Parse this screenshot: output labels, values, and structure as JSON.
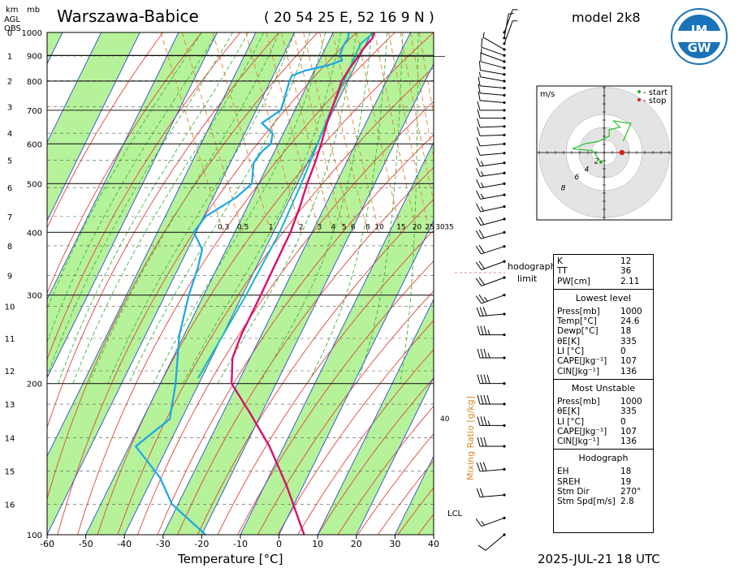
{
  "header": {
    "station": "Warszawa-Babice",
    "coords": "( 20 54 25 E, 52 16 9 N )",
    "model": "model 2k8",
    "datetime": "2025-JUL-21   18 UTC",
    "logo_text": "IMGW"
  },
  "left_labels": {
    "km": "km",
    "mb": "mb",
    "agl": "AGL",
    "obs": "OBS"
  },
  "chart_data": {
    "type": "skew-t",
    "xlabel": "Temperature [°C]",
    "x_range": [
      -60,
      40
    ],
    "x_ticks": [
      "-60",
      "-50",
      "-40",
      "-30",
      "-20",
      "-10",
      "0",
      "10",
      "20",
      "30",
      "40"
    ],
    "p_range": [
      1000,
      100
    ],
    "p_ticks": [
      {
        "p": 100,
        "label": "100"
      },
      {
        "p": 200,
        "label": "200"
      },
      {
        "p": 300,
        "label": "300"
      },
      {
        "p": 400,
        "label": "400"
      },
      {
        "p": 500,
        "label": "500"
      },
      {
        "p": 600,
        "label": "600"
      },
      {
        "p": 700,
        "label": "700"
      },
      {
        "p": 800,
        "label": "800"
      },
      {
        "p": 900,
        "label": "900"
      },
      {
        "p": 1000,
        "label": "1000"
      }
    ],
    "km_ticks": [
      {
        "p": 1000,
        "label": "0"
      },
      {
        "p": 898,
        "label": "1"
      },
      {
        "p": 802,
        "label": "2"
      },
      {
        "p": 712,
        "label": "3"
      },
      {
        "p": 630,
        "label": "4"
      },
      {
        "p": 557,
        "label": "5"
      },
      {
        "p": 491,
        "label": "6"
      },
      {
        "p": 430,
        "label": "7"
      },
      {
        "p": 376,
        "label": "8"
      },
      {
        "p": 328,
        "label": "9"
      },
      {
        "p": 285,
        "label": "10"
      },
      {
        "p": 246,
        "label": "11"
      },
      {
        "p": 212,
        "label": "12"
      },
      {
        "p": 182,
        "label": "13"
      },
      {
        "p": 156,
        "label": "14"
      },
      {
        "p": 134,
        "label": "15"
      },
      {
        "p": 115,
        "label": "16"
      }
    ],
    "mixing_ratio_label": "Mixing Ratio [g/kg]",
    "mixing_ratio_ticks": [
      "0.3",
      "0.5",
      "1",
      "2",
      "3",
      "4",
      "5",
      "6",
      "8",
      "10",
      "15",
      "20",
      "25",
      "30",
      "35"
    ],
    "mixing_ratio_40": "40",
    "lcl_label": "LCL",
    "hodograph_limit_label": "hodograph limit",
    "temperature": [
      {
        "p": 1000,
        "t": 24.6
      },
      {
        "p": 975,
        "t": 23.5
      },
      {
        "p": 950,
        "t": 21.5
      },
      {
        "p": 925,
        "t": 19.5
      },
      {
        "p": 900,
        "t": 17.8
      },
      {
        "p": 850,
        "t": 13.8
      },
      {
        "p": 800,
        "t": 10.0
      },
      {
        "p": 750,
        "t": 7.0
      },
      {
        "p": 700,
        "t": 3.6
      },
      {
        "p": 650,
        "t": 0.2
      },
      {
        "p": 600,
        "t": -3.3
      },
      {
        "p": 550,
        "t": -7.3
      },
      {
        "p": 500,
        "t": -12.0
      },
      {
        "p": 450,
        "t": -16.8
      },
      {
        "p": 400,
        "t": -22.5
      },
      {
        "p": 350,
        "t": -29.8
      },
      {
        "p": 300,
        "t": -38.2
      },
      {
        "p": 250,
        "t": -48.3
      },
      {
        "p": 225,
        "t": -53.5
      },
      {
        "p": 200,
        "t": -57.0
      },
      {
        "p": 175,
        "t": -56.0
      },
      {
        "p": 150,
        "t": -55.2
      },
      {
        "p": 125,
        "t": -55.8
      },
      {
        "p": 100,
        "t": -57.5
      }
    ],
    "dewpoint": [
      {
        "p": 1000,
        "t": 18.0
      },
      {
        "p": 975,
        "t": 17.2
      },
      {
        "p": 950,
        "t": 15.5
      },
      {
        "p": 920,
        "t": 13.8
      },
      {
        "p": 900,
        "t": 12.8
      },
      {
        "p": 880,
        "t": 12.8
      },
      {
        "p": 860,
        "t": 8.5
      },
      {
        "p": 840,
        "t": 2.0
      },
      {
        "p": 820,
        "t": -2.2
      },
      {
        "p": 800,
        "t": -3.5
      },
      {
        "p": 760,
        "t": -5.8
      },
      {
        "p": 730,
        "t": -7.5
      },
      {
        "p": 700,
        "t": -9.5
      },
      {
        "p": 660,
        "t": -16.0
      },
      {
        "p": 630,
        "t": -14.5
      },
      {
        "p": 600,
        "t": -16.3
      },
      {
        "p": 580,
        "t": -19.5
      },
      {
        "p": 550,
        "t": -23.2
      },
      {
        "p": 500,
        "t": -26.3
      },
      {
        "p": 470,
        "t": -32.0
      },
      {
        "p": 430,
        "t": -42.5
      },
      {
        "p": 400,
        "t": -47.5
      },
      {
        "p": 370,
        "t": -47.5
      },
      {
        "p": 340,
        "t": -51.0
      },
      {
        "p": 300,
        "t": -56.8
      },
      {
        "p": 250,
        "t": -64.3
      },
      {
        "p": 200,
        "t": -71.5
      },
      {
        "p": 170,
        "t": -77.5
      },
      {
        "p": 150,
        "t": -89.8
      },
      {
        "p": 130,
        "t": -87.5
      },
      {
        "p": 100,
        "t": -83.0
      },
      {
        "p": 115,
        "t": -87.8
      }
    ],
    "parcel": [
      {
        "p": 1000,
        "t": 24.6
      },
      {
        "p": 950,
        "t": 19.7
      },
      {
        "p": 900,
        "t": 16.8
      },
      {
        "p": 850,
        "t": 13.8
      },
      {
        "p": 800,
        "t": 10.5
      },
      {
        "p": 700,
        "t": 3.5
      },
      {
        "p": 600,
        "t": -4.2
      },
      {
        "p": 500,
        "t": -13.5
      },
      {
        "p": 400,
        "t": -25.3
      },
      {
        "p": 300,
        "t": -42.0
      },
      {
        "p": 250,
        "t": -53.0
      },
      {
        "p": 205,
        "t": -65.0
      }
    ],
    "winds": [
      {
        "p": 1000,
        "dir": 20,
        "spd": 3
      },
      {
        "p": 975,
        "dir": 10,
        "spd": 4
      },
      {
        "p": 950,
        "dir": 20,
        "spd": 6
      },
      {
        "p": 925,
        "dir": 300,
        "spd": 7
      },
      {
        "p": 900,
        "dir": 290,
        "spd": 8
      },
      {
        "p": 875,
        "dir": 290,
        "spd": 7
      },
      {
        "p": 850,
        "dir": 285,
        "spd": 8
      },
      {
        "p": 825,
        "dir": 280,
        "spd": 8
      },
      {
        "p": 800,
        "dir": 280,
        "spd": 7
      },
      {
        "p": 775,
        "dir": 275,
        "spd": 8
      },
      {
        "p": 750,
        "dir": 275,
        "spd": 8
      },
      {
        "p": 725,
        "dir": 275,
        "spd": 9
      },
      {
        "p": 700,
        "dir": 270,
        "spd": 9
      },
      {
        "p": 675,
        "dir": 270,
        "spd": 10
      },
      {
        "p": 650,
        "dir": 268,
        "spd": 11
      },
      {
        "p": 625,
        "dir": 268,
        "spd": 11
      },
      {
        "p": 600,
        "dir": 265,
        "spd": 12
      },
      {
        "p": 575,
        "dir": 265,
        "spd": 12
      },
      {
        "p": 550,
        "dir": 262,
        "spd": 14
      },
      {
        "p": 525,
        "dir": 262,
        "spd": 14
      },
      {
        "p": 500,
        "dir": 260,
        "spd": 15
      },
      {
        "p": 475,
        "dir": 260,
        "spd": 16
      },
      {
        "p": 450,
        "dir": 258,
        "spd": 17
      },
      {
        "p": 425,
        "dir": 255,
        "spd": 18
      },
      {
        "p": 400,
        "dir": 255,
        "spd": 19
      },
      {
        "p": 375,
        "dir": 252,
        "spd": 20
      },
      {
        "p": 350,
        "dir": 250,
        "spd": 21
      },
      {
        "p": 325,
        "dir": 250,
        "spd": 22
      },
      {
        "p": 300,
        "dir": 250,
        "spd": 24
      },
      {
        "p": 275,
        "dir": 265,
        "spd": 30
      },
      {
        "p": 250,
        "dir": 270,
        "spd": 34
      },
      {
        "p": 225,
        "dir": 270,
        "spd": 36
      },
      {
        "p": 200,
        "dir": 270,
        "spd": 38
      },
      {
        "p": 182,
        "dir": 270,
        "spd": 38
      },
      {
        "p": 165,
        "dir": 270,
        "spd": 36
      },
      {
        "p": 150,
        "dir": 270,
        "spd": 32
      },
      {
        "p": 135,
        "dir": 265,
        "spd": 28
      },
      {
        "p": 120,
        "dir": 265,
        "spd": 22
      },
      {
        "p": 108,
        "dir": 250,
        "spd": 14
      },
      {
        "p": 100,
        "dir": 230,
        "spd": 8
      }
    ],
    "hodograph": {
      "units": "m/s",
      "legend_start": "- start",
      "legend_stop": "- stop",
      "ring_labels": [
        "2",
        "4",
        "6",
        "8"
      ],
      "trace": [
        {
          "u": -0.5,
          "v": -1.5
        },
        {
          "u": -1.8,
          "v": 0.3
        },
        {
          "u": -5.0,
          "v": 0.6
        },
        {
          "u": -3.0,
          "v": 1.4
        },
        {
          "u": -0.8,
          "v": 1.8
        },
        {
          "u": 0.8,
          "v": 2.6
        },
        {
          "u": 0.8,
          "v": 3.6
        },
        {
          "u": 2.5,
          "v": 4.0
        },
        {
          "u": 1.5,
          "v": 5.0
        },
        {
          "u": 4.2,
          "v": 4.6
        },
        {
          "u": 3.0,
          "v": 1.8
        }
      ],
      "storm": {
        "u": 2.8,
        "v": 0.0
      }
    }
  },
  "indices": {
    "top": [
      {
        "k": "K",
        "v": "12"
      },
      {
        "k": "TT",
        "v": "36"
      },
      {
        "k": "PW[cm]",
        "v": "2.11"
      }
    ],
    "lowest_title": "Lowest level",
    "lowest": [
      {
        "k": "Press[mb]",
        "v": "1000"
      },
      {
        "k": "Temp[°C]",
        "v": "24.6"
      },
      {
        "k": "Dewp[°C]",
        "v": "18"
      },
      {
        "k": "θE[K]",
        "v": "335"
      },
      {
        "k": "LI [°C]",
        "v": "0"
      },
      {
        "k": "CAPE[Jkg⁻¹]",
        "v": "107"
      },
      {
        "k": "CIN[Jkg⁻¹]",
        "v": "136"
      }
    ],
    "mu_title": "Most Unstable",
    "mu": [
      {
        "k": "Press[mb]",
        "v": "1000"
      },
      {
        "k": "θE[K]",
        "v": "335"
      },
      {
        "k": "LI [°C]",
        "v": "0"
      },
      {
        "k": "CAPE[Jkg⁻¹]",
        "v": "107"
      },
      {
        "k": "CIN[Jkg⁻¹]",
        "v": "136"
      }
    ],
    "hodo_title": "Hodograph",
    "hodo": [
      {
        "k": "EH",
        "v": "18"
      },
      {
        "k": "SREH",
        "v": "19"
      },
      {
        "k": "Stm Dir",
        "v": "270°"
      },
      {
        "k": "Stm Spd[m/s]",
        "v": "2.8"
      }
    ]
  },
  "colors": {
    "temperature": "#d4136e",
    "dewpoint": "#1aa6e8",
    "parcel": "#16b8c4",
    "isotherm": "#3a5fd0",
    "dry_adiabat": "#e0453a",
    "moist_adiabat": "#3fb53f",
    "mixing_ratio": "#e87f2e",
    "band": "#b6f29a",
    "label_orange": "#d98a2a"
  }
}
